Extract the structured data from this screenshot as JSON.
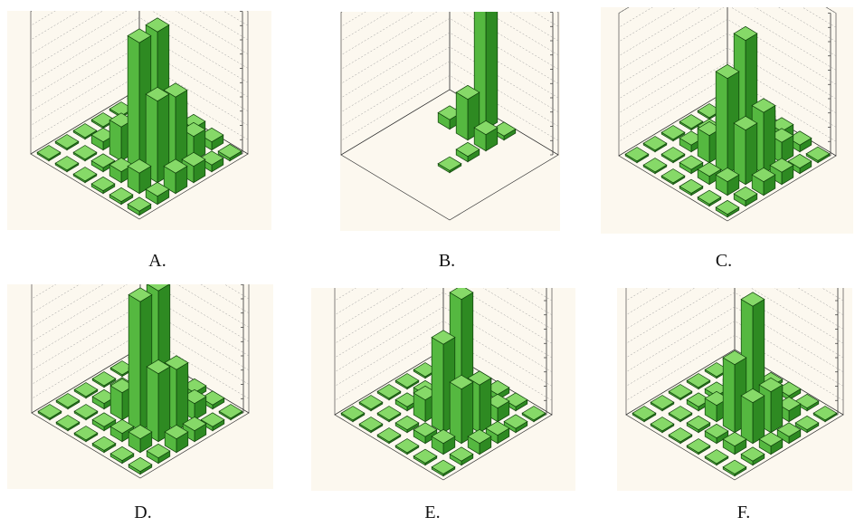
{
  "colors": {
    "background": "#fcf8ef",
    "bar_front": "#55b840",
    "bar_side": "#2e8a22",
    "bar_top": "#86d968",
    "bar_edge": "#0e3f0a",
    "grid": "#9a9a9a",
    "axis": "#333333"
  },
  "chart_data": [
    {
      "type": "bar3d",
      "caption": "A.",
      "grid": true,
      "values": [
        [
          0.3,
          0.2,
          0.2,
          0.1,
          0.05,
          0.05
        ],
        [
          0.6,
          1.5,
          0.8,
          0.3,
          0.1,
          0.05
        ],
        [
          1.5,
          6.0,
          9.5,
          2.5,
          0.6,
          0.1
        ],
        [
          1.2,
          5.5,
          9.5,
          3.5,
          0.8,
          0.1
        ],
        [
          0.5,
          1.8,
          3.0,
          1.5,
          0.4,
          0.05
        ],
        [
          0.2,
          0.6,
          0.8,
          0.6,
          0.2,
          0.05
        ]
      ]
    },
    {
      "type": "bar3d",
      "caption": "B.",
      "grid": true,
      "values": [
        [
          0,
          0,
          0,
          0,
          0,
          0
        ],
        [
          0,
          0,
          0,
          0,
          0,
          0
        ],
        [
          0,
          0,
          0.15,
          0,
          0,
          0
        ],
        [
          0,
          0,
          0.4,
          0,
          0,
          0
        ],
        [
          0,
          0,
          1.2,
          3.0,
          0.7,
          0
        ],
        [
          0,
          0,
          0.3,
          9.8,
          0.2,
          0
        ]
      ]
    },
    {
      "type": "bar3d",
      "caption": "C.",
      "grid": true,
      "values": [
        [
          0.2,
          0.15,
          0.15,
          0.1,
          0.05,
          0.05
        ],
        [
          0.4,
          1.0,
          0.6,
          0.3,
          0.1,
          0.05
        ],
        [
          1.0,
          4.0,
          7.0,
          2.0,
          0.5,
          0.1
        ],
        [
          0.9,
          4.5,
          9.0,
          3.0,
          0.6,
          0.1
        ],
        [
          0.4,
          1.5,
          2.5,
          1.2,
          0.3,
          0.05
        ],
        [
          0.15,
          0.5,
          0.7,
          0.5,
          0.15,
          0.05
        ]
      ]
    },
    {
      "type": "bar3d",
      "caption": "D.",
      "grid": true,
      "values": [
        [
          0.2,
          0.2,
          0.15,
          0.1,
          0.05,
          0.05
        ],
        [
          0.4,
          1.0,
          0.6,
          0.3,
          0.1,
          0.05
        ],
        [
          1.0,
          5.0,
          9.5,
          2.0,
          0.4,
          0.1
        ],
        [
          0.8,
          4.5,
          9.5,
          2.5,
          0.5,
          0.1
        ],
        [
          0.3,
          1.2,
          2.0,
          1.0,
          0.3,
          0.05
        ],
        [
          0.1,
          0.3,
          0.4,
          0.3,
          0.1,
          0.05
        ]
      ]
    },
    {
      "type": "bar3d",
      "caption": "E.",
      "grid": true,
      "values": [
        [
          0.15,
          0.15,
          0.1,
          0.1,
          0.05,
          0.05
        ],
        [
          0.3,
          0.8,
          0.5,
          0.2,
          0.1,
          0.05
        ],
        [
          0.8,
          4.0,
          6.5,
          1.6,
          0.3,
          0.1
        ],
        [
          0.6,
          3.5,
          9.0,
          2.0,
          0.4,
          0.1
        ],
        [
          0.3,
          1.0,
          1.8,
          0.8,
          0.2,
          0.05
        ],
        [
          0.1,
          0.3,
          0.4,
          0.3,
          0.1,
          0.05
        ]
      ]
    },
    {
      "type": "bar3d",
      "caption": "F.",
      "grid": true,
      "values": [
        [
          0.15,
          0.1,
          0.1,
          0.05,
          0.05,
          0.05
        ],
        [
          0.3,
          0.6,
          0.4,
          0.2,
          0.1,
          0.05
        ],
        [
          0.6,
          3.0,
          5.0,
          1.2,
          0.3,
          0.05
        ],
        [
          0.5,
          3.0,
          8.5,
          1.5,
          0.3,
          0.05
        ],
        [
          0.2,
          0.8,
          1.2,
          0.6,
          0.2,
          0.05
        ],
        [
          0.1,
          0.2,
          0.3,
          0.2,
          0.1,
          0.05
        ]
      ]
    }
  ]
}
